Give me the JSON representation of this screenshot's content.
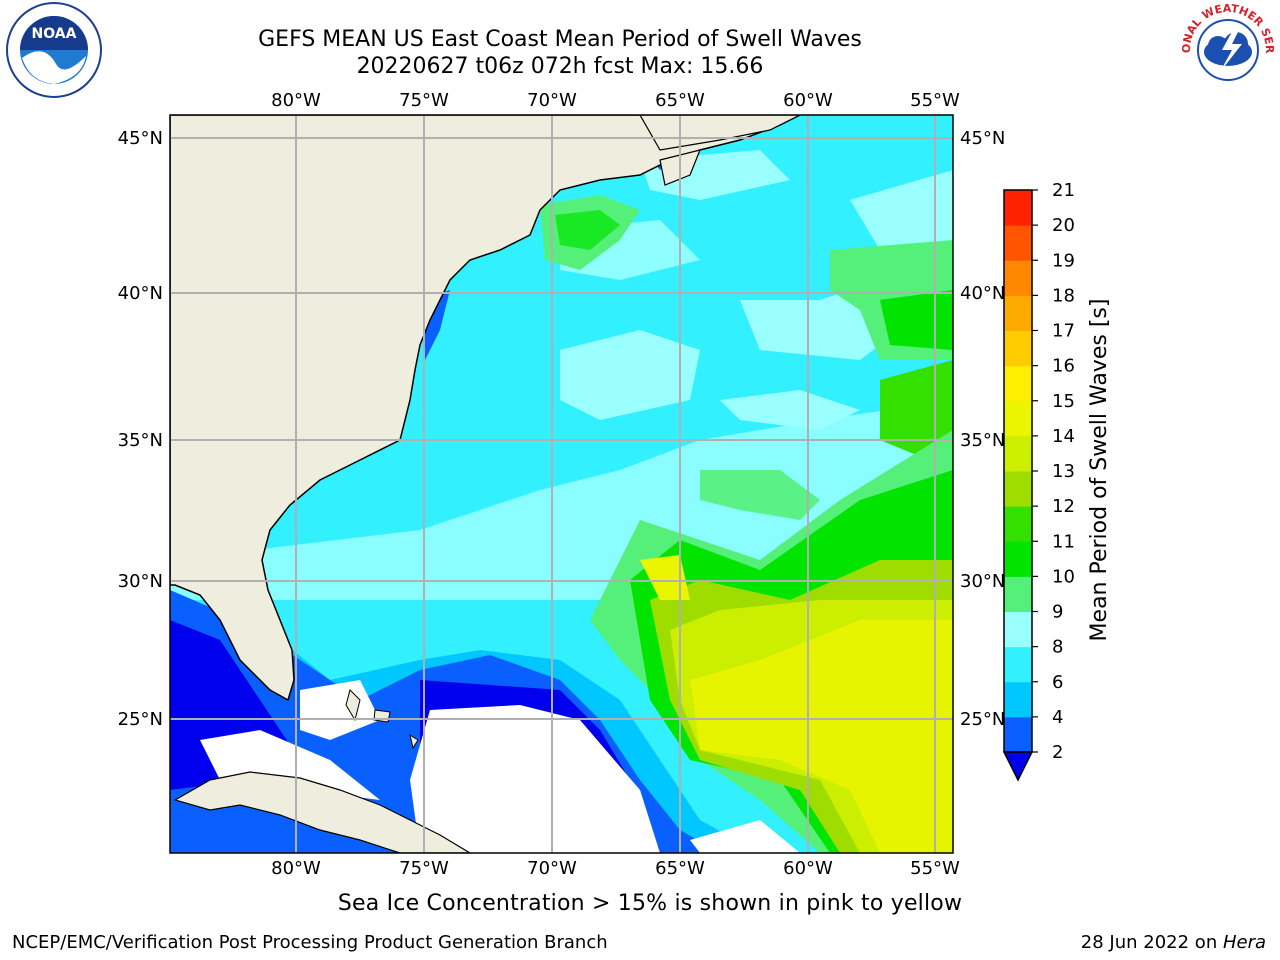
{
  "header": {
    "title_line1": "GEFS MEAN US East Coast Mean Period of Swell Waves",
    "title_line2": "20220627 t06z 072h fcst   Max: 15.66"
  },
  "logos": {
    "left": {
      "text": "NOAA",
      "icon": "noaa-logo-icon"
    },
    "right": {
      "text": "NATIONAL WEATHER SERVICE",
      "icon": "nws-logo-icon"
    }
  },
  "map": {
    "lon_labels": [
      "80°W",
      "75°W",
      "70°W",
      "65°W",
      "60°W",
      "55°W"
    ],
    "lat_labels": [
      "45°N",
      "40°N",
      "35°N",
      "30°N",
      "25°N"
    ],
    "colors": {
      "land": "#efeddd",
      "no_data": "#ffffff",
      "grid": "#b0b0b0"
    }
  },
  "colorbar": {
    "label": "Mean Period of Swell Waves [s]",
    "ticks": [
      "2",
      "4",
      "6",
      "8",
      "9",
      "10",
      "11",
      "12",
      "13",
      "14",
      "15",
      "16",
      "17",
      "18",
      "19",
      "20",
      "21"
    ],
    "colors": [
      "#0a60ff",
      "#00c8ff",
      "#33f0ff",
      "#99ffff",
      "#55f07a",
      "#00e400",
      "#33e000",
      "#9fdd00",
      "#ccee00",
      "#eaf500",
      "#ffee00",
      "#ffcc00",
      "#ffaa00",
      "#ff8800",
      "#ff5500",
      "#ff2200"
    ],
    "under_color": "#0000ee"
  },
  "caption": "Sea Ice Concentration > 15% is shown in pink to yellow",
  "footer": {
    "left": "NCEP/EMC/Verification Post Processing Product Generation Branch",
    "right_date": "28 Jun 2022 on ",
    "right_machine": "Hera"
  }
}
